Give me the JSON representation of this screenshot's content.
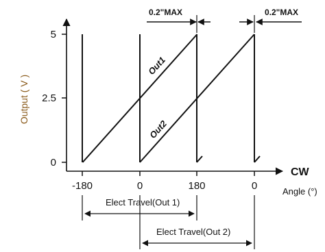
{
  "chart_data": {
    "type": "line",
    "title": "",
    "xlabel": "Angle (°)",
    "ylabel": "Output ( V )",
    "direction_label": "CW",
    "y_ticks": [
      "0",
      "2.5",
      "5"
    ],
    "x_ticks": [
      "-180",
      "0",
      "180",
      "0"
    ],
    "ylim": [
      0,
      5.6
    ],
    "grid": false,
    "series": [
      {
        "name": "Out1",
        "x": [
          -180,
          180
        ],
        "y": [
          0,
          5
        ]
      },
      {
        "name": "Out2",
        "x": [
          0,
          360
        ],
        "y": [
          0,
          5
        ]
      }
    ],
    "annotations": {
      "max_gap_label_1": "0.2\"MAX",
      "max_gap_label_2": "0.2\"MAX",
      "elect_travel_1": "Elect Travel(Out 1)",
      "elect_travel_2": "Elect Travel(Out 2)"
    }
  }
}
